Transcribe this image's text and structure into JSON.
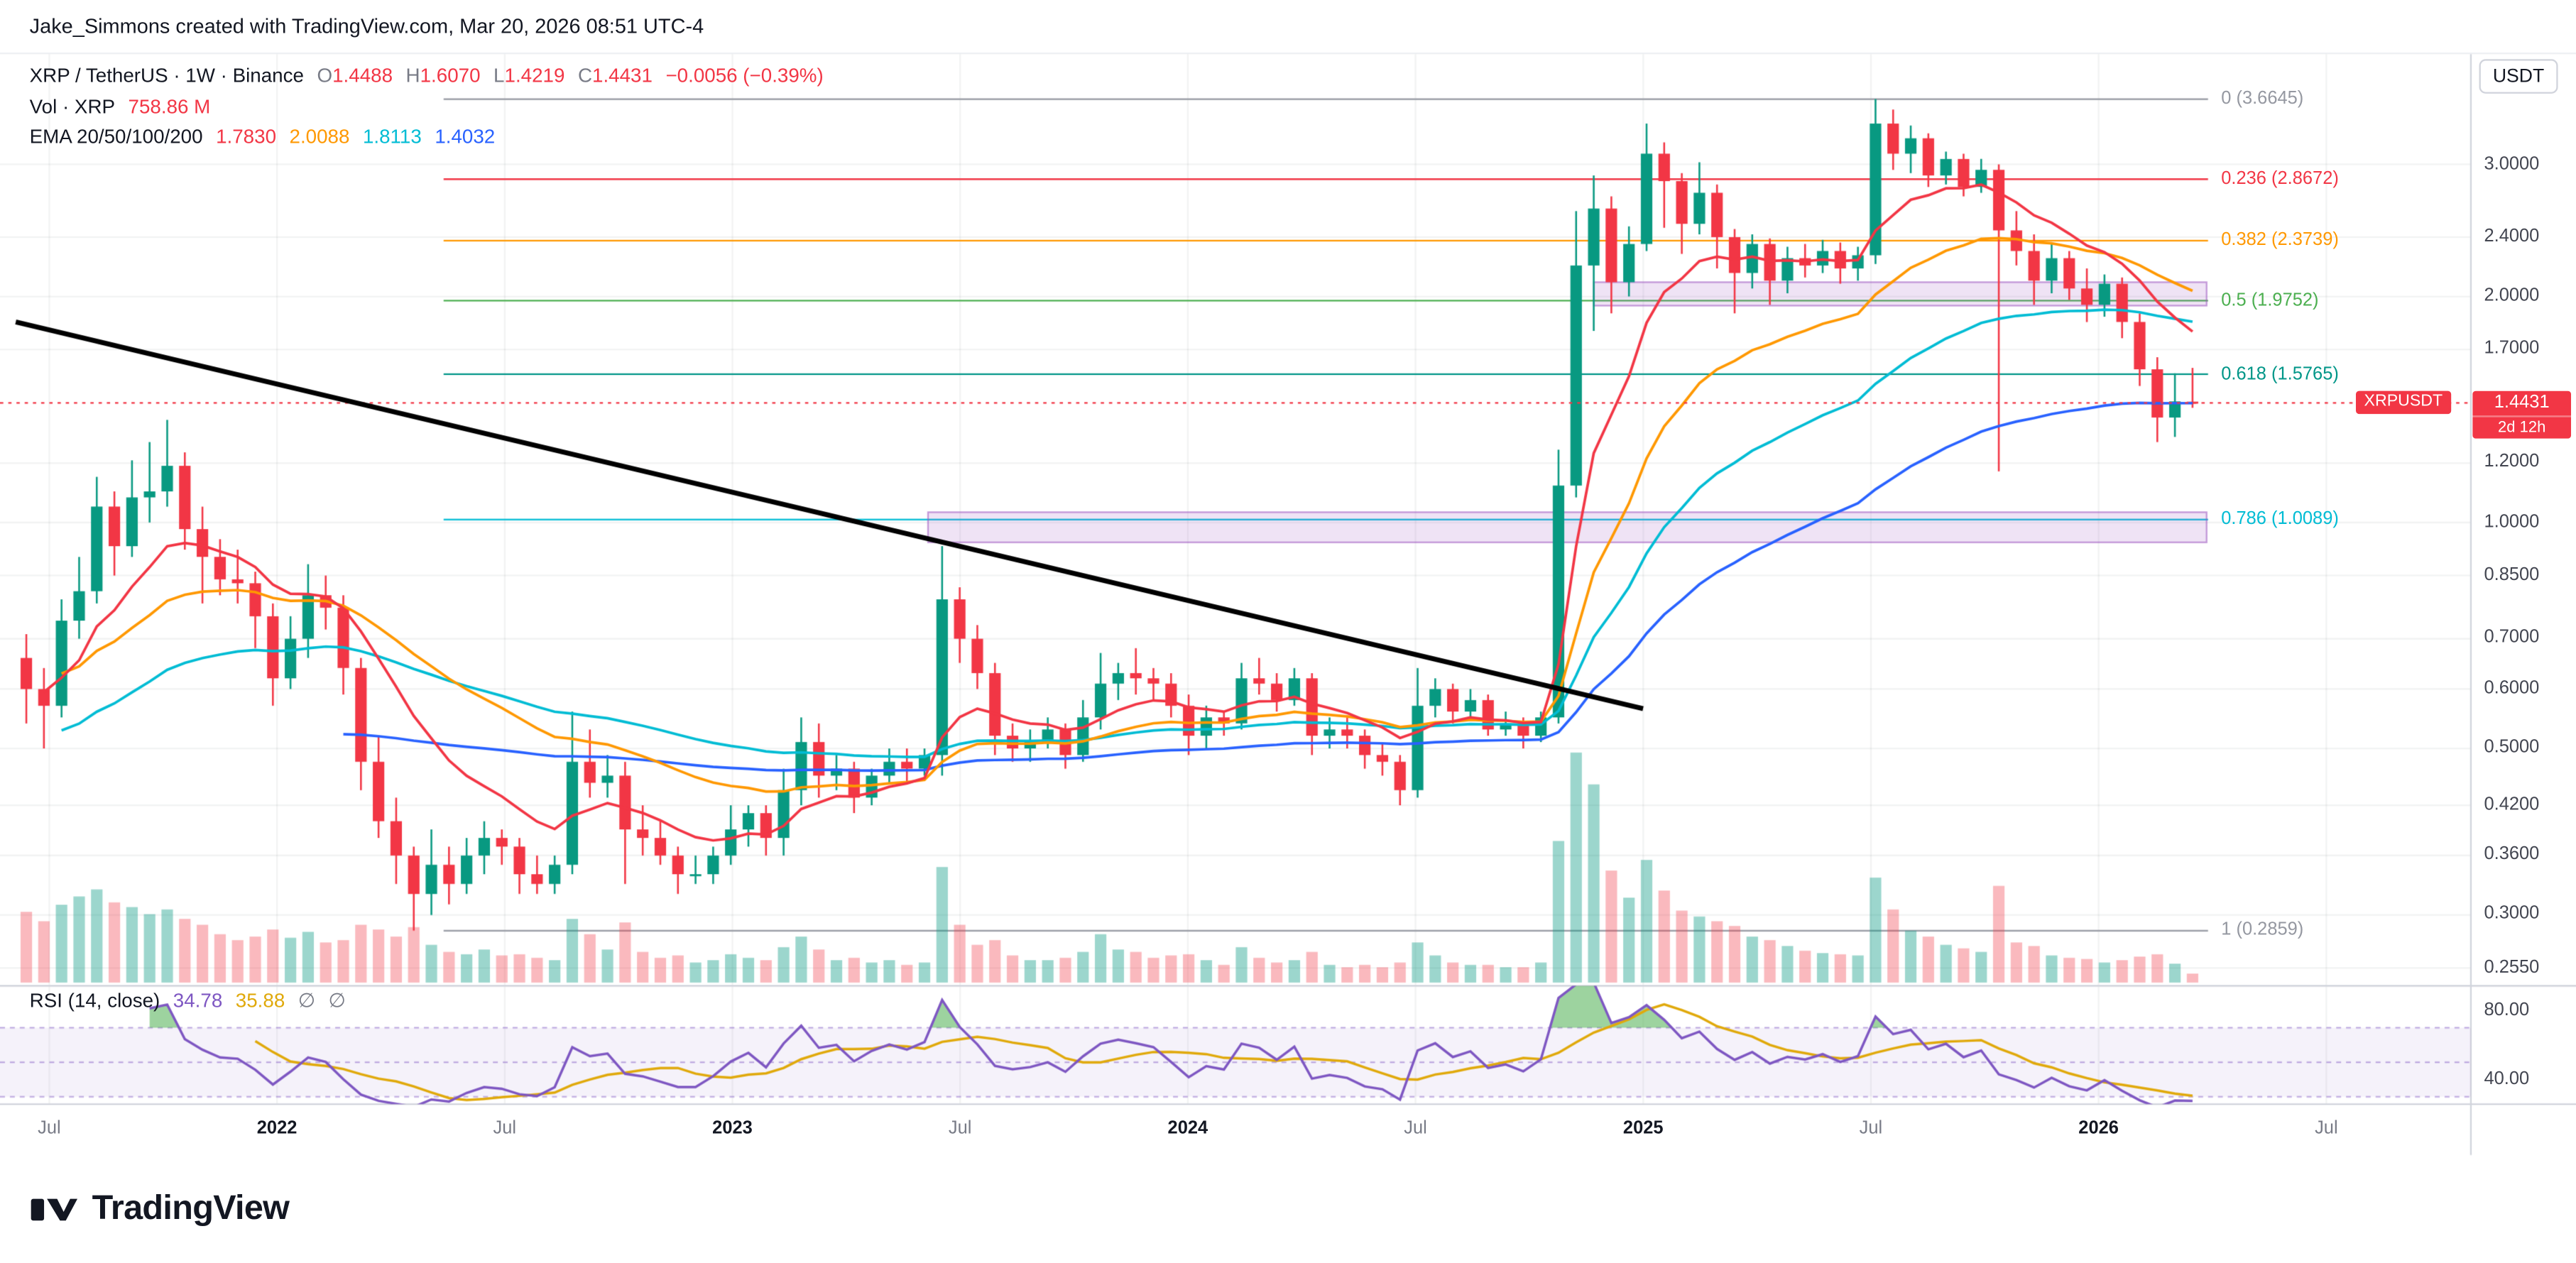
{
  "attribution": "Jake_Simmons created with TradingView.com, Mar 20, 2026 08:51 UTC-4",
  "legend": {
    "symbol": "XRP / TetherUS · 1W · Binance",
    "ohlc": [
      {
        "label": "O",
        "value": "1.4488"
      },
      {
        "label": "H",
        "value": "1.6070"
      },
      {
        "label": "L",
        "value": "1.4219"
      },
      {
        "label": "C",
        "value": "1.4431"
      }
    ],
    "change": "−0.0056 (−0.39%)",
    "volume_label": "Vol · XRP",
    "volume_value": "758.86 M",
    "ema_label": "EMA 20/50/100/200",
    "ema_values": [
      "1.7830",
      "2.0088",
      "1.8113",
      "1.4032"
    ]
  },
  "rsi_legend": {
    "label": "RSI (14, close)",
    "value": "34.78",
    "ma_value": "35.88",
    "icon1": "∅",
    "icon2": "∅"
  },
  "price_axis": {
    "currency": "USDT",
    "ticks": [
      "3.0000",
      "2.4000",
      "2.0000",
      "1.7000",
      "1.2000",
      "1.0000",
      "0.8500",
      "0.7000",
      "0.6000",
      "0.5000",
      "0.4200",
      "0.3600",
      "0.3000",
      "0.2550"
    ]
  },
  "rsi_axis": [
    "80.00",
    "40.00"
  ],
  "time_axis": [
    "Jul",
    "2022",
    "Jul",
    "2023",
    "Jul",
    "2024",
    "Jul",
    "2025",
    "Jul",
    "2026",
    "Jul"
  ],
  "price_label": {
    "symbol": "XRPUSDT",
    "price": "1.4431",
    "countdown": "2d 12h"
  },
  "fib_levels": [
    {
      "label": "0 (3.6645)",
      "value": 3.6645,
      "color": "#9598a1"
    },
    {
      "label": "0.236 (2.8672)",
      "value": 2.8672,
      "color": "#f23645"
    },
    {
      "label": "0.382 (2.3739)",
      "value": 2.3739,
      "color": "#ff9800"
    },
    {
      "label": "0.5 (1.9752)",
      "value": 1.9752,
      "color": "#4caf50"
    },
    {
      "label": "0.618 (1.5765)",
      "value": 1.5765,
      "color": "#009688"
    },
    {
      "label": "0.786 (1.0089)",
      "value": 1.0089,
      "color": "#00bcd4"
    },
    {
      "label": "1 (0.2859)",
      "value": 0.2859,
      "color": "#9598a1"
    }
  ],
  "logo_text": "TradingView",
  "chart_data": {
    "type": "candlestick",
    "symbol": "XRPUSDT",
    "exchange": "Binance",
    "timeframe": "1W",
    "y_scale": "log",
    "x_range": [
      "Jul 2021",
      "Jul 2026"
    ],
    "current_price": 1.4431,
    "volume_unit": "M",
    "up_color": "#089981",
    "down_color": "#f23645",
    "indicators": {
      "ema_periods": [
        20,
        50,
        100,
        200
      ],
      "ema_colors": [
        "#f23645",
        "#ff9800",
        "#00bcd4",
        "#2962ff"
      ],
      "rsi": {
        "period": 14,
        "source": "close",
        "value": 34.78,
        "ma_value": 35.88,
        "color": "#7e57c2",
        "ma_color": "#e0a90b",
        "bands": [
          70,
          50,
          30
        ],
        "overbought_fill": "rgba(76,175,80,0.55)"
      }
    },
    "trendline": {
      "start": {
        "index": -0.6,
        "price": 1.85
      },
      "end": {
        "index": 91.8,
        "price": 0.565
      },
      "color": "#000000"
    },
    "boxes": [
      {
        "start_index": 89,
        "end_index": 123.8,
        "top": 2.09,
        "bottom": 1.945,
        "fill": "rgba(153,80,190,0.16)",
        "stroke": "rgba(153,80,190,0.55)"
      },
      {
        "start_index": 51.2,
        "end_index": 123.8,
        "top": 1.032,
        "bottom": 0.941,
        "fill": "rgba(153,80,190,0.16)",
        "stroke": "rgba(153,80,190,0.55)"
      }
    ],
    "candles": [
      [
        0.66,
        0.71,
        0.54,
        0.6,
        6000
      ],
      [
        0.6,
        0.64,
        0.5,
        0.57,
        5200
      ],
      [
        0.57,
        0.79,
        0.55,
        0.74,
        6600
      ],
      [
        0.74,
        0.9,
        0.7,
        0.81,
        7300
      ],
      [
        0.81,
        1.15,
        0.78,
        1.05,
        7900
      ],
      [
        1.05,
        1.1,
        0.85,
        0.93,
        6800
      ],
      [
        0.93,
        1.21,
        0.9,
        1.08,
        6400
      ],
      [
        1.08,
        1.28,
        1.0,
        1.1,
        5800
      ],
      [
        1.1,
        1.37,
        1.05,
        1.19,
        6200
      ],
      [
        1.19,
        1.24,
        0.92,
        0.98,
        5400
      ],
      [
        0.98,
        1.05,
        0.78,
        0.9,
        4900
      ],
      [
        0.9,
        0.95,
        0.8,
        0.84,
        4100
      ],
      [
        0.84,
        0.92,
        0.78,
        0.83,
        3600
      ],
      [
        0.83,
        0.86,
        0.68,
        0.75,
        3900
      ],
      [
        0.75,
        0.78,
        0.57,
        0.62,
        4500
      ],
      [
        0.62,
        0.75,
        0.6,
        0.7,
        3800
      ],
      [
        0.7,
        0.88,
        0.66,
        0.8,
        4300
      ],
      [
        0.8,
        0.85,
        0.72,
        0.77,
        3400
      ],
      [
        0.77,
        0.8,
        0.59,
        0.64,
        3600
      ],
      [
        0.64,
        0.66,
        0.44,
        0.48,
        4900
      ],
      [
        0.48,
        0.52,
        0.38,
        0.4,
        4500
      ],
      [
        0.4,
        0.43,
        0.33,
        0.36,
        3900
      ],
      [
        0.36,
        0.37,
        0.286,
        0.32,
        4700
      ],
      [
        0.32,
        0.39,
        0.3,
        0.35,
        3200
      ],
      [
        0.35,
        0.37,
        0.31,
        0.33,
        2600
      ],
      [
        0.33,
        0.38,
        0.32,
        0.36,
        2400
      ],
      [
        0.36,
        0.4,
        0.34,
        0.38,
        2800
      ],
      [
        0.38,
        0.39,
        0.35,
        0.37,
        2300
      ],
      [
        0.37,
        0.38,
        0.32,
        0.34,
        2400
      ],
      [
        0.34,
        0.36,
        0.32,
        0.33,
        2100
      ],
      [
        0.33,
        0.36,
        0.32,
        0.35,
        1900
      ],
      [
        0.35,
        0.56,
        0.34,
        0.48,
        5400
      ],
      [
        0.48,
        0.53,
        0.43,
        0.45,
        4100
      ],
      [
        0.45,
        0.49,
        0.43,
        0.46,
        2800
      ],
      [
        0.46,
        0.48,
        0.33,
        0.39,
        5100
      ],
      [
        0.39,
        0.42,
        0.36,
        0.38,
        2600
      ],
      [
        0.38,
        0.4,
        0.35,
        0.36,
        2100
      ],
      [
        0.36,
        0.37,
        0.32,
        0.34,
        2300
      ],
      [
        0.34,
        0.36,
        0.33,
        0.34,
        1700
      ],
      [
        0.34,
        0.37,
        0.33,
        0.36,
        1900
      ],
      [
        0.36,
        0.42,
        0.35,
        0.39,
        2400
      ],
      [
        0.39,
        0.42,
        0.37,
        0.41,
        2100
      ],
      [
        0.41,
        0.42,
        0.36,
        0.38,
        1900
      ],
      [
        0.38,
        0.47,
        0.36,
        0.44,
        3000
      ],
      [
        0.44,
        0.55,
        0.42,
        0.51,
        3900
      ],
      [
        0.51,
        0.54,
        0.43,
        0.46,
        2800
      ],
      [
        0.46,
        0.49,
        0.44,
        0.47,
        1900
      ],
      [
        0.47,
        0.48,
        0.41,
        0.43,
        2100
      ],
      [
        0.43,
        0.47,
        0.42,
        0.46,
        1700
      ],
      [
        0.46,
        0.5,
        0.45,
        0.48,
        1900
      ],
      [
        0.48,
        0.5,
        0.45,
        0.47,
        1500
      ],
      [
        0.47,
        0.5,
        0.46,
        0.49,
        1700
      ],
      [
        0.49,
        0.93,
        0.46,
        0.79,
        9800
      ],
      [
        0.79,
        0.82,
        0.65,
        0.7,
        4900
      ],
      [
        0.7,
        0.73,
        0.6,
        0.63,
        3200
      ],
      [
        0.63,
        0.65,
        0.49,
        0.52,
        3600
      ],
      [
        0.52,
        0.54,
        0.48,
        0.5,
        2300
      ],
      [
        0.5,
        0.53,
        0.48,
        0.51,
        1900
      ],
      [
        0.51,
        0.55,
        0.5,
        0.53,
        1900
      ],
      [
        0.53,
        0.54,
        0.47,
        0.49,
        2100
      ],
      [
        0.49,
        0.58,
        0.48,
        0.55,
        2600
      ],
      [
        0.55,
        0.67,
        0.53,
        0.61,
        4100
      ],
      [
        0.61,
        0.65,
        0.58,
        0.63,
        2800
      ],
      [
        0.63,
        0.68,
        0.59,
        0.62,
        2600
      ],
      [
        0.62,
        0.64,
        0.58,
        0.61,
        2100
      ],
      [
        0.61,
        0.63,
        0.55,
        0.57,
        2300
      ],
      [
        0.57,
        0.59,
        0.49,
        0.52,
        2400
      ],
      [
        0.52,
        0.57,
        0.5,
        0.55,
        1900
      ],
      [
        0.55,
        0.56,
        0.52,
        0.54,
        1500
      ],
      [
        0.54,
        0.65,
        0.53,
        0.62,
        3000
      ],
      [
        0.62,
        0.66,
        0.59,
        0.61,
        2100
      ],
      [
        0.61,
        0.63,
        0.56,
        0.58,
        1700
      ],
      [
        0.58,
        0.64,
        0.57,
        0.62,
        1900
      ],
      [
        0.62,
        0.63,
        0.49,
        0.52,
        2600
      ],
      [
        0.52,
        0.55,
        0.5,
        0.53,
        1500
      ],
      [
        0.53,
        0.55,
        0.5,
        0.52,
        1300
      ],
      [
        0.52,
        0.53,
        0.47,
        0.49,
        1500
      ],
      [
        0.49,
        0.51,
        0.46,
        0.48,
        1300
      ],
      [
        0.48,
        0.49,
        0.42,
        0.44,
        1700
      ],
      [
        0.44,
        0.64,
        0.43,
        0.57,
        3400
      ],
      [
        0.57,
        0.62,
        0.55,
        0.6,
        2300
      ],
      [
        0.6,
        0.61,
        0.54,
        0.56,
        1700
      ],
      [
        0.56,
        0.6,
        0.55,
        0.58,
        1500
      ],
      [
        0.58,
        0.59,
        0.52,
        0.53,
        1500
      ],
      [
        0.53,
        0.56,
        0.52,
        0.54,
        1300
      ],
      [
        0.54,
        0.55,
        0.5,
        0.52,
        1300
      ],
      [
        0.52,
        0.56,
        0.51,
        0.55,
        1700
      ],
      [
        0.55,
        1.25,
        0.54,
        1.12,
        12000
      ],
      [
        1.12,
        2.6,
        1.08,
        2.2,
        19500
      ],
      [
        2.2,
        2.9,
        1.8,
        2.62,
        16800
      ],
      [
        2.62,
        2.72,
        1.9,
        2.09,
        9500
      ],
      [
        2.09,
        2.48,
        2.0,
        2.35,
        7200
      ],
      [
        2.35,
        3.4,
        2.3,
        3.1,
        10400
      ],
      [
        3.1,
        3.21,
        2.47,
        2.85,
        7800
      ],
      [
        2.85,
        2.92,
        2.28,
        2.5,
        6100
      ],
      [
        2.5,
        3.02,
        2.42,
        2.75,
        5600
      ],
      [
        2.75,
        2.82,
        2.18,
        2.4,
        5200
      ],
      [
        2.4,
        2.46,
        1.9,
        2.15,
        4800
      ],
      [
        2.15,
        2.42,
        2.05,
        2.35,
        3900
      ],
      [
        2.35,
        2.39,
        1.95,
        2.1,
        3600
      ],
      [
        2.1,
        2.33,
        2.02,
        2.25,
        3100
      ],
      [
        2.25,
        2.35,
        2.12,
        2.2,
        2700
      ],
      [
        2.2,
        2.38,
        2.15,
        2.3,
        2500
      ],
      [
        2.3,
        2.36,
        2.08,
        2.18,
        2400
      ],
      [
        2.18,
        2.33,
        2.1,
        2.27,
        2300
      ],
      [
        2.27,
        3.6645,
        2.21,
        3.4,
        8900
      ],
      [
        3.4,
        3.55,
        2.95,
        3.1,
        6200
      ],
      [
        3.1,
        3.38,
        2.92,
        3.25,
        4400
      ],
      [
        3.25,
        3.3,
        2.8,
        2.9,
        3900
      ],
      [
        2.9,
        3.12,
        2.82,
        3.05,
        3200
      ],
      [
        3.05,
        3.1,
        2.72,
        2.8,
        2900
      ],
      [
        2.8,
        3.05,
        2.75,
        2.95,
        2600
      ],
      [
        2.95,
        3.0,
        1.17,
        2.45,
        8200
      ],
      [
        2.45,
        2.6,
        2.2,
        2.3,
        3400
      ],
      [
        2.3,
        2.42,
        1.95,
        2.1,
        3100
      ],
      [
        2.1,
        2.35,
        2.02,
        2.25,
        2300
      ],
      [
        2.25,
        2.3,
        1.98,
        2.05,
        2100
      ],
      [
        2.05,
        2.18,
        1.85,
        1.95,
        2000
      ],
      [
        1.95,
        2.14,
        1.88,
        2.08,
        1700
      ],
      [
        2.08,
        2.12,
        1.76,
        1.85,
        1900
      ],
      [
        1.85,
        1.9,
        1.52,
        1.6,
        2200
      ],
      [
        1.6,
        1.66,
        1.28,
        1.38,
        2400
      ],
      [
        1.38,
        1.58,
        1.3,
        1.45,
        1600
      ],
      [
        1.4488,
        1.607,
        1.4219,
        1.4431,
        758.86
      ]
    ]
  }
}
